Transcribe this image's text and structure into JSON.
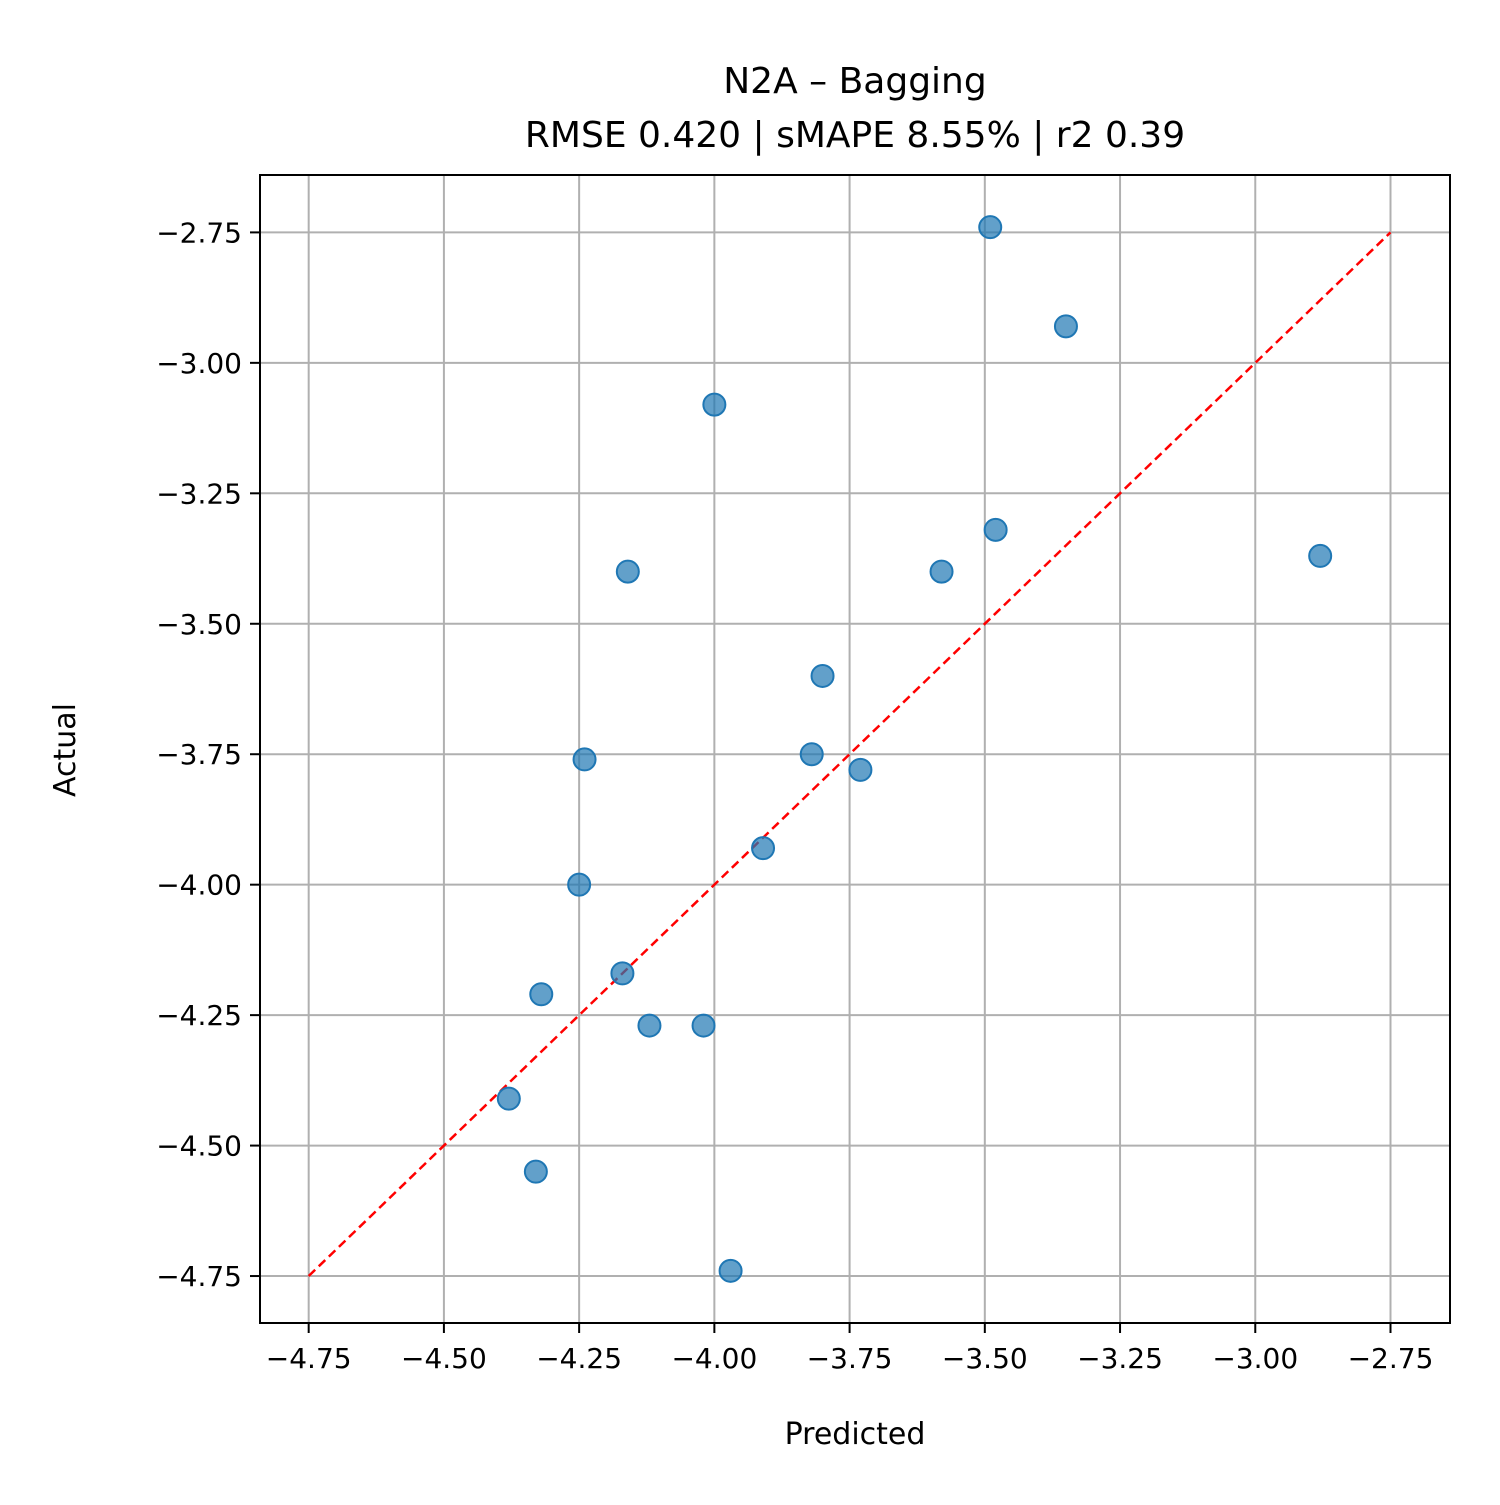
{
  "chart_data": {
    "type": "scatter",
    "title": "N2A – Bagging",
    "subtitle": "RMSE 0.420 | sMAPE 8.55%  | r2 0.39",
    "xlabel": "Predicted",
    "ylabel": "Actual",
    "xlim": [
      -4.84,
      -2.64
    ],
    "ylim": [
      -4.84,
      -2.64
    ],
    "xticks": [
      -4.75,
      -4.5,
      -4.25,
      -4.0,
      -3.75,
      -3.5,
      -3.25,
      -3.0,
      -2.75
    ],
    "yticks": [
      -2.75,
      -3.0,
      -3.25,
      -3.5,
      -3.75,
      -4.0,
      -4.25,
      -4.5,
      -4.75
    ],
    "xtick_labels": [
      "−4.75",
      "−4.50",
      "−4.25",
      "−4.00",
      "−3.75",
      "−3.50",
      "−3.25",
      "−3.00",
      "−2.75"
    ],
    "ytick_labels": [
      "−2.75",
      "−3.00",
      "−3.25",
      "−3.50",
      "−3.75",
      "−4.00",
      "−4.25",
      "−4.50",
      "−4.75"
    ],
    "grid": true,
    "reference_line": {
      "from": [
        -4.75,
        -4.75
      ],
      "to": [
        -2.75,
        -2.75
      ],
      "style": "dashed",
      "color": "#ff0000"
    },
    "marker_color": "#1f77b4",
    "points": [
      {
        "x": -3.49,
        "y": -2.74
      },
      {
        "x": -3.35,
        "y": -2.93
      },
      {
        "x": -4.0,
        "y": -3.08
      },
      {
        "x": -3.48,
        "y": -3.32
      },
      {
        "x": -2.88,
        "y": -3.37
      },
      {
        "x": -4.16,
        "y": -3.4
      },
      {
        "x": -3.58,
        "y": -3.4
      },
      {
        "x": -3.8,
        "y": -3.6
      },
      {
        "x": -4.24,
        "y": -3.76
      },
      {
        "x": -3.82,
        "y": -3.75
      },
      {
        "x": -3.73,
        "y": -3.78
      },
      {
        "x": -3.91,
        "y": -3.93
      },
      {
        "x": -4.25,
        "y": -4.0
      },
      {
        "x": -4.17,
        "y": -4.17
      },
      {
        "x": -4.32,
        "y": -4.21
      },
      {
        "x": -4.12,
        "y": -4.27
      },
      {
        "x": -4.02,
        "y": -4.27
      },
      {
        "x": -4.38,
        "y": -4.41
      },
      {
        "x": -4.33,
        "y": -4.55
      },
      {
        "x": -3.97,
        "y": -4.74
      }
    ]
  }
}
